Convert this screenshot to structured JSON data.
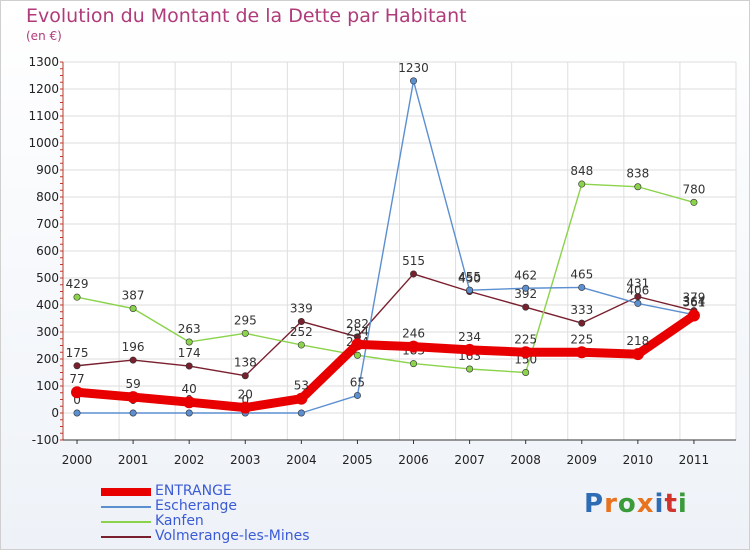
{
  "header": {
    "title": "Evolution du Montant de la Dette par Habitant",
    "subtitle": "(en €)"
  },
  "logo": {
    "text": "Proxiti",
    "letter_colors": [
      "#2e6db5",
      "#e8731e",
      "#3b9b3b",
      "#e8731e",
      "#2e6db5",
      "#d0342c",
      "#3b9b3b"
    ]
  },
  "chart_data": {
    "type": "line",
    "title": "Evolution du Montant de la Dette par Habitant",
    "subtitle": "(en €)",
    "xlabel": "",
    "ylabel": "",
    "x": [
      "2000",
      "2001",
      "2002",
      "2003",
      "2004",
      "2005",
      "2006",
      "2007",
      "2008",
      "2009",
      "2010",
      "2011"
    ],
    "ylim": [
      -100,
      1300
    ],
    "yticks": [
      -100,
      0,
      100,
      200,
      300,
      400,
      500,
      600,
      700,
      800,
      900,
      1000,
      1100,
      1200,
      1300
    ],
    "grid": true,
    "legend_position": "bottom-left",
    "series": [
      {
        "name": "Volmerange-les-Mines",
        "color": "#7a1f2e",
        "values": [
          175,
          196,
          174,
          138,
          339,
          282,
          515,
          450,
          392,
          333,
          431,
          379
        ]
      },
      {
        "name": "Kanfen",
        "color": "#8ad34a",
        "values": [
          429,
          387,
          263,
          295,
          252,
          214,
          183,
          163,
          150,
          848,
          838,
          780
        ]
      },
      {
        "name": "Escherange",
        "color": "#5b8fd0",
        "values": [
          0,
          0,
          0,
          0,
          0,
          65,
          1230,
          455,
          462,
          465,
          406,
          364
        ]
      },
      {
        "name": "ENTRANGE",
        "color": "#e80000",
        "values": [
          77,
          59,
          40,
          20,
          53,
          254,
          246,
          234,
          225,
          225,
          218,
          361
        ]
      }
    ]
  },
  "legend": {
    "items": [
      {
        "label": "ENTRANGE",
        "color": "#e80000"
      },
      {
        "label": "Escherange",
        "color": "#5b8fd0"
      },
      {
        "label": "Kanfen",
        "color": "#8ad34a"
      },
      {
        "label": "Volmerange-les-Mines",
        "color": "#7a1f2e"
      }
    ]
  }
}
